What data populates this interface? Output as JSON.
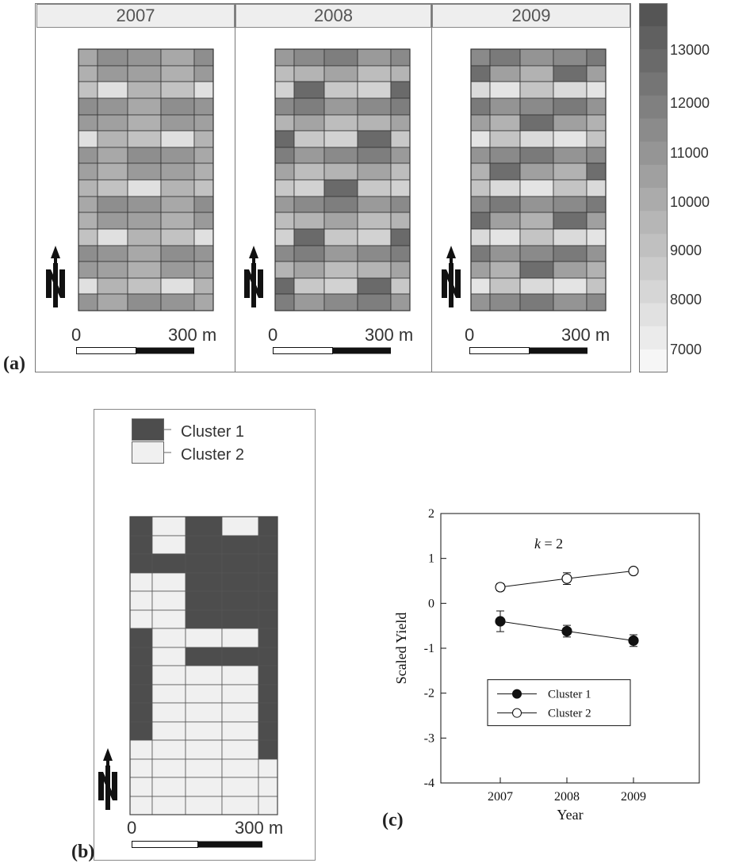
{
  "panel_a": {
    "label": "(a)",
    "years": [
      "2007",
      "2008",
      "2009"
    ],
    "scale_zero": "0",
    "scale_end": "300 m",
    "colorbar_ticks": [
      "13000",
      "12000",
      "11000",
      "10000",
      "9000",
      "8000",
      "7000"
    ]
  },
  "panel_b": {
    "label": "(b)",
    "legend": [
      "Cluster 1",
      "Cluster 2"
    ],
    "scale_zero": "0",
    "scale_end": "300 m"
  },
  "panel_c": {
    "label": "(c)",
    "annotation_k": "k",
    "annotation_rest": " = 2",
    "xlabel": "Year",
    "ylabel": "Scaled Yield",
    "legend": [
      "Cluster 1",
      "Cluster 2"
    ]
  },
  "colors": {
    "cluster1": "#4d4d4d",
    "cluster2": "#f0f0f0",
    "map_dark": "#555555",
    "map_light": "#f2f2f2"
  },
  "chart_data": {
    "type": "line",
    "x": [
      "2007",
      "2008",
      "2009"
    ],
    "xlabel": "Year",
    "ylabel": "Scaled Yield",
    "ylim": [
      -4,
      2
    ],
    "yticks": [
      "2",
      "1",
      "0",
      "-1",
      "-2",
      "-3",
      "-4"
    ],
    "series": [
      {
        "name": "Cluster 1",
        "values": [
          -0.4,
          -0.62,
          -0.83
        ],
        "errors": [
          0.23,
          0.13,
          0.13
        ],
        "marker": "filled-circle"
      },
      {
        "name": "Cluster 2",
        "values": [
          0.36,
          0.55,
          0.72
        ],
        "errors": [
          0.08,
          0.13,
          0.07
        ],
        "marker": "open-circle"
      }
    ]
  }
}
